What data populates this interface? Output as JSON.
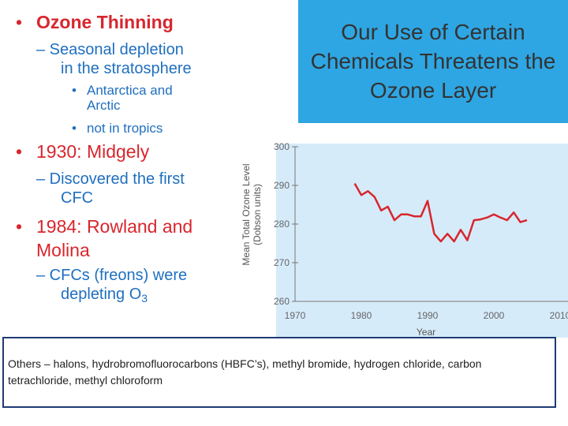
{
  "slide": {
    "bullets": [
      {
        "level": 1,
        "text": "Ozone Thinning"
      },
      {
        "level": 2,
        "text": "– Seasonal depletion"
      },
      {
        "level": 2,
        "text": "in the stratosphere"
      },
      {
        "level": 3,
        "text": "Antarctica and"
      },
      {
        "level": 3,
        "text": "Arctic"
      },
      {
        "level": 3,
        "text": "not in tropics"
      },
      {
        "level": 1,
        "text": "1930: Midgely"
      },
      {
        "level": 2,
        "text": "– Discovered the first"
      },
      {
        "level": 2,
        "text": "CFC"
      },
      {
        "level": 1,
        "text": "1984: Rowland and"
      },
      {
        "level": 1,
        "text": "Molina"
      },
      {
        "level": 2,
        "text": "– CFCs  (freons) were"
      },
      {
        "level": 2,
        "text": "depleting O"
      },
      {
        "level": 2,
        "text": "3"
      }
    ],
    "title_lines": [
      "Our Use of Certain",
      "Chemicals Threatens the",
      "Ozone Layer"
    ],
    "note": "Others – halons, hydrobromofluorocarbons (HBFC’s), methyl bromide, hydrogen chloride, carbon tetrachloride, methyl chloroform"
  },
  "colors": {
    "heading_red": "#d8262d",
    "bullet_blue": "#1f6fbf",
    "title_box": "#2ea6e3",
    "plot_bg": "#d6ebfa",
    "series_red": "#d8262d",
    "note_border": "#1f3b73"
  },
  "chart_data": {
    "type": "line",
    "title": "",
    "xlabel": "Year",
    "ylabel": "Mean Total Ozone Level",
    "ylabel_units": "(Dobson units)",
    "xlim": [
      1970,
      2010
    ],
    "ylim": [
      260,
      300
    ],
    "xticks": [
      "1970",
      "1980",
      "1990",
      "2000",
      "2010"
    ],
    "yticks": [
      "260",
      "270",
      "280",
      "290",
      "300"
    ],
    "grid": false,
    "series": [
      {
        "x": [
          1979,
          1980,
          1981,
          1982,
          1983,
          1984,
          1985,
          1986,
          1987,
          1988,
          1989,
          1990,
          1991,
          1992,
          1993,
          1994,
          1995,
          1996,
          1997,
          1998,
          1999,
          2000,
          2001,
          2002,
          2003,
          2004,
          2005
        ],
        "y": [
          290.5,
          287.5,
          288.5,
          287.0,
          283.5,
          284.5,
          281.0,
          282.5,
          282.5,
          282.0,
          282.0,
          286.0,
          277.5,
          275.5,
          277.5,
          275.5,
          278.5,
          275.8,
          281.0,
          281.2,
          281.7,
          282.5,
          281.7,
          281.0,
          283.0,
          280.5,
          281.0
        ]
      }
    ]
  }
}
